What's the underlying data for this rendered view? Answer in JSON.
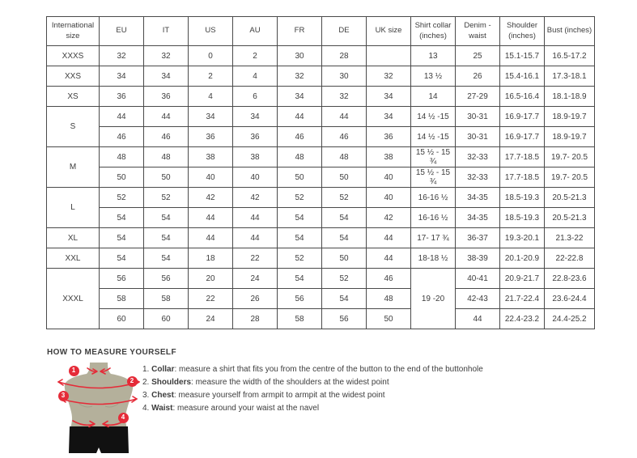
{
  "colors": {
    "accent_red": "#e52b38",
    "mannequin_body": "#b4b09b",
    "shorts_black": "#111111",
    "border": "#4a4a4a",
    "text": "#3d3d3d"
  },
  "size_table": {
    "headers": [
      "International\nsize",
      "EU",
      "IT",
      "US",
      "AU",
      "FR",
      "DE",
      "UK size",
      "Shirt collar\n(inches)",
      "Denim -\nwaist",
      "Shoulder\n(inches)",
      "Bust (inches)"
    ],
    "rows": [
      {
        "cells": [
          {
            "t": "XXXS"
          },
          {
            "t": "32"
          },
          {
            "t": "32"
          },
          {
            "t": "0"
          },
          {
            "t": "2"
          },
          {
            "t": "30"
          },
          {
            "t": "28"
          },
          {
            "t": ""
          },
          {
            "t": "13"
          },
          {
            "t": "25"
          },
          {
            "t": "15.1-15.7"
          },
          {
            "t": "16.5-17.2"
          }
        ]
      },
      {
        "cells": [
          {
            "t": "XXS"
          },
          {
            "t": "34"
          },
          {
            "t": "34"
          },
          {
            "t": "2"
          },
          {
            "t": "4"
          },
          {
            "t": "32"
          },
          {
            "t": "30"
          },
          {
            "t": "32"
          },
          {
            "t": "13 ½"
          },
          {
            "t": "26"
          },
          {
            "t": "15.4-16.1"
          },
          {
            "t": "17.3-18.1"
          }
        ]
      },
      {
        "cells": [
          {
            "t": "XS"
          },
          {
            "t": "36"
          },
          {
            "t": "36"
          },
          {
            "t": "4"
          },
          {
            "t": "6"
          },
          {
            "t": "34"
          },
          {
            "t": "32"
          },
          {
            "t": "34"
          },
          {
            "t": "14"
          },
          {
            "t": "27-29"
          },
          {
            "t": "16.5-16.4"
          },
          {
            "t": "18.1-18.9"
          }
        ]
      },
      {
        "cells": [
          {
            "t": "S",
            "rs": 2
          },
          {
            "t": "44"
          },
          {
            "t": "44"
          },
          {
            "t": "34"
          },
          {
            "t": "34"
          },
          {
            "t": "44"
          },
          {
            "t": "44"
          },
          {
            "t": "34"
          },
          {
            "t": "14 ½ -15"
          },
          {
            "t": "30-31"
          },
          {
            "t": "16.9-17.7"
          },
          {
            "t": "18.9-19.7"
          }
        ]
      },
      {
        "cells": [
          {
            "t": "46"
          },
          {
            "t": "46"
          },
          {
            "t": "36"
          },
          {
            "t": "36"
          },
          {
            "t": "46"
          },
          {
            "t": "46"
          },
          {
            "t": "36"
          },
          {
            "t": "14 ½ -15"
          },
          {
            "t": "30-31"
          },
          {
            "t": "16.9-17.7"
          },
          {
            "t": "18.9-19.7"
          }
        ]
      },
      {
        "cells": [
          {
            "t": "M",
            "rs": 2
          },
          {
            "t": "48"
          },
          {
            "t": "48"
          },
          {
            "t": "38"
          },
          {
            "t": "38"
          },
          {
            "t": "48"
          },
          {
            "t": "48"
          },
          {
            "t": "38"
          },
          {
            "t": "15 ½ - 15 ¾"
          },
          {
            "t": "32-33"
          },
          {
            "t": "17.7-18.5"
          },
          {
            "t": "19.7- 20.5"
          }
        ]
      },
      {
        "cells": [
          {
            "t": "50"
          },
          {
            "t": "50"
          },
          {
            "t": "40"
          },
          {
            "t": "40"
          },
          {
            "t": "50"
          },
          {
            "t": "50"
          },
          {
            "t": "40"
          },
          {
            "t": "15 ½ - 15 ¾"
          },
          {
            "t": "32-33"
          },
          {
            "t": "17.7-18.5"
          },
          {
            "t": "19.7- 20.5"
          }
        ]
      },
      {
        "cells": [
          {
            "t": "L",
            "rs": 2
          },
          {
            "t": "52"
          },
          {
            "t": "52"
          },
          {
            "t": "42"
          },
          {
            "t": "42"
          },
          {
            "t": "52"
          },
          {
            "t": "52"
          },
          {
            "t": "40"
          },
          {
            "t": "16-16 ½"
          },
          {
            "t": "34-35"
          },
          {
            "t": "18.5-19.3"
          },
          {
            "t": "20.5-21.3"
          }
        ]
      },
      {
        "cells": [
          {
            "t": "54"
          },
          {
            "t": "54"
          },
          {
            "t": "44"
          },
          {
            "t": "44"
          },
          {
            "t": "54"
          },
          {
            "t": "54"
          },
          {
            "t": "42"
          },
          {
            "t": "16-16 ½"
          },
          {
            "t": "34-35"
          },
          {
            "t": "18.5-19.3"
          },
          {
            "t": "20.5-21.3"
          }
        ]
      },
      {
        "cells": [
          {
            "t": "XL"
          },
          {
            "t": "54"
          },
          {
            "t": "54"
          },
          {
            "t": "44"
          },
          {
            "t": "44"
          },
          {
            "t": "54"
          },
          {
            "t": "54"
          },
          {
            "t": "44"
          },
          {
            "t": "17- 17 ¾"
          },
          {
            "t": "36-37"
          },
          {
            "t": "19.3-20.1"
          },
          {
            "t": "21.3-22"
          }
        ]
      },
      {
        "cells": [
          {
            "t": "XXL"
          },
          {
            "t": "54"
          },
          {
            "t": "54"
          },
          {
            "t": "18"
          },
          {
            "t": "22"
          },
          {
            "t": "52"
          },
          {
            "t": "50"
          },
          {
            "t": "44"
          },
          {
            "t": "18-18 ½"
          },
          {
            "t": "38-39"
          },
          {
            "t": "20.1-20.9"
          },
          {
            "t": "22-22.8"
          }
        ]
      },
      {
        "cells": [
          {
            "t": "XXXL",
            "rs": 3
          },
          {
            "t": "56"
          },
          {
            "t": "56"
          },
          {
            "t": "20"
          },
          {
            "t": "24"
          },
          {
            "t": "54"
          },
          {
            "t": "52"
          },
          {
            "t": "46"
          },
          {
            "t": "19 -20",
            "rs": 3
          },
          {
            "t": "40-41"
          },
          {
            "t": "20.9-21.7"
          },
          {
            "t": "22.8-23.6"
          }
        ]
      },
      {
        "cells": [
          {
            "t": "58"
          },
          {
            "t": "58"
          },
          {
            "t": "22"
          },
          {
            "t": "26"
          },
          {
            "t": "56"
          },
          {
            "t": "54"
          },
          {
            "t": "48"
          },
          {
            "t": "42-43"
          },
          {
            "t": "21.7-22.4"
          },
          {
            "t": "23.6-24.4"
          }
        ]
      },
      {
        "cells": [
          {
            "t": "60"
          },
          {
            "t": "60"
          },
          {
            "t": "24"
          },
          {
            "t": "28"
          },
          {
            "t": "58"
          },
          {
            "t": "56"
          },
          {
            "t": "50"
          },
          {
            "t": "44"
          },
          {
            "t": "22.4-23.2"
          },
          {
            "t": "24.4-25.2"
          }
        ]
      }
    ]
  },
  "measure_section": {
    "heading": "HOW TO MEASURE YOURSELF",
    "markers": [
      "1",
      "2",
      "3",
      "4"
    ],
    "instructions": [
      {
        "num": "1.",
        "label": "Collar",
        "text": ": measure a shirt that fits you from the centre of the button to the end of the buttonhole"
      },
      {
        "num": "2.",
        "label": "Shoulders",
        "text": ": measure the width of the shoulders at the widest point"
      },
      {
        "num": "3.",
        "label": "Chest",
        "text": ": measure yourself from armpit to armpit at the widest point"
      },
      {
        "num": "4.",
        "label": "Waist",
        "text": ": measure around your waist at the navel"
      }
    ]
  }
}
